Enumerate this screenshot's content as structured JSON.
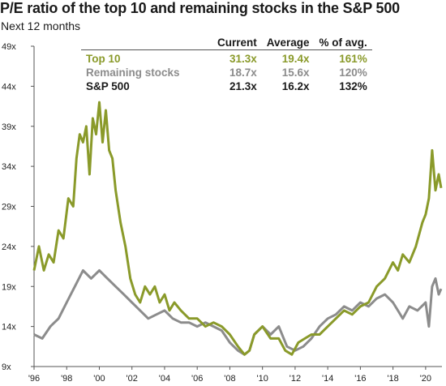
{
  "title": "P/E ratio of the top 10 and remaining stocks in the S&P 500",
  "subtitle": "Next 12 months",
  "colors": {
    "top10": "#8a9a2a",
    "remaining": "#8c8c8c",
    "sp500": "#1a1a1a",
    "axis": "#555555"
  },
  "table": {
    "headers": [
      "Current",
      "Average",
      "% of avg."
    ],
    "rows": [
      {
        "label": "Top 10",
        "current": "31.3x",
        "average": "19.4x",
        "pct": "161%",
        "color": "#8a9a2a"
      },
      {
        "label": "Remaining stocks",
        "current": "18.7x",
        "average": "15.6x",
        "pct": "120%",
        "color": "#8c8c8c"
      },
      {
        "label": "S&P 500",
        "current": "21.3x",
        "average": "16.2x",
        "pct": "132%",
        "color": "#1a1a1a"
      }
    ]
  },
  "chart_data": {
    "type": "line",
    "title": "P/E ratio of the top 10 and remaining stocks in the S&P 500",
    "subtitle": "Next 12 months",
    "xlim": [
      1996,
      2021
    ],
    "ylim": [
      9,
      49
    ],
    "y_ticks": [
      9,
      14,
      19,
      24,
      29,
      34,
      39,
      44,
      49
    ],
    "y_tick_labels": [
      "9x",
      "14x",
      "19x",
      "24x",
      "29x",
      "34x",
      "39x",
      "44x",
      "49x"
    ],
    "x_ticks": [
      1996,
      1998,
      2000,
      2002,
      2004,
      2006,
      2008,
      2010,
      2012,
      2014,
      2016,
      2018,
      2020
    ],
    "x_tick_labels": [
      "'96",
      "'98",
      "'00",
      "'02",
      "'04",
      "'06",
      "'08",
      "'10",
      "'12",
      "'14",
      "'16",
      "'18",
      "'20"
    ],
    "grid": false,
    "series": [
      {
        "name": "Top 10",
        "color": "#8a9a2a",
        "x": [
          1996.0,
          1996.3,
          1996.6,
          1996.9,
          1997.2,
          1997.5,
          1997.8,
          1998.1,
          1998.4,
          1998.6,
          1998.8,
          1999.0,
          1999.2,
          1999.4,
          1999.6,
          1999.8,
          2000.0,
          2000.2,
          2000.4,
          2000.6,
          2000.8,
          2001.0,
          2001.3,
          2001.6,
          2001.9,
          2002.2,
          2002.5,
          2002.8,
          2003.1,
          2003.4,
          2003.7,
          2004.0,
          2004.3,
          2004.6,
          2005.0,
          2005.5,
          2006.0,
          2006.5,
          2007.0,
          2007.5,
          2008.0,
          2008.5,
          2008.9,
          2009.2,
          2009.5,
          2010.0,
          2010.5,
          2011.0,
          2011.4,
          2011.8,
          2012.2,
          2012.6,
          2013.0,
          2013.5,
          2014.0,
          2014.5,
          2015.0,
          2015.5,
          2016.0,
          2016.5,
          2017.0,
          2017.5,
          2018.0,
          2018.3,
          2018.6,
          2019.0,
          2019.4,
          2019.8,
          2020.0,
          2020.2,
          2020.4,
          2020.6,
          2020.8,
          2020.95
        ],
        "values": [
          21,
          24,
          21,
          23,
          22,
          26,
          25,
          30,
          29,
          35,
          38,
          37,
          39,
          33,
          40,
          38,
          42,
          37,
          41,
          36,
          35,
          31,
          27,
          24,
          20,
          18,
          17,
          19,
          18,
          19,
          17,
          18,
          16,
          17,
          16,
          15,
          15,
          14,
          14.5,
          14,
          13,
          11.5,
          10.5,
          11,
          13,
          14,
          12.5,
          12.5,
          11,
          10.5,
          12,
          12.5,
          13,
          13,
          14,
          15,
          16,
          15.5,
          16.5,
          17,
          19,
          20,
          22,
          21,
          23,
          22,
          24,
          27,
          28,
          30,
          36,
          31,
          33,
          31.3
        ]
      },
      {
        "name": "Remaining stocks",
        "color": "#8c8c8c",
        "x": [
          1996.0,
          1996.5,
          1997.0,
          1997.5,
          1998.0,
          1998.5,
          1999.0,
          1999.5,
          2000.0,
          2000.5,
          2001.0,
          2001.5,
          2002.0,
          2002.5,
          2003.0,
          2003.5,
          2004.0,
          2004.5,
          2005.0,
          2005.5,
          2006.0,
          2006.5,
          2007.0,
          2007.5,
          2008.0,
          2008.5,
          2008.9,
          2009.2,
          2009.5,
          2010.0,
          2010.5,
          2011.0,
          2011.5,
          2012.0,
          2012.5,
          2013.0,
          2013.5,
          2014.0,
          2014.5,
          2015.0,
          2015.5,
          2016.0,
          2016.5,
          2017.0,
          2017.5,
          2018.0,
          2018.3,
          2018.6,
          2019.0,
          2019.5,
          2020.0,
          2020.2,
          2020.4,
          2020.6,
          2020.8,
          2020.95
        ],
        "values": [
          13,
          12.5,
          14,
          15,
          17,
          19,
          21,
          20,
          21,
          20,
          19,
          18,
          17,
          16,
          15,
          15.5,
          16,
          15,
          14.5,
          14.5,
          14,
          14.5,
          14,
          13.5,
          12,
          11,
          10.5,
          11,
          13,
          14,
          13,
          14,
          11.5,
          11,
          11.5,
          12.5,
          14,
          15,
          15.5,
          16.5,
          16,
          17,
          16.5,
          17.5,
          18,
          17,
          16,
          15,
          16.5,
          16,
          17,
          14,
          19,
          20,
          18,
          18.7
        ]
      }
    ]
  }
}
